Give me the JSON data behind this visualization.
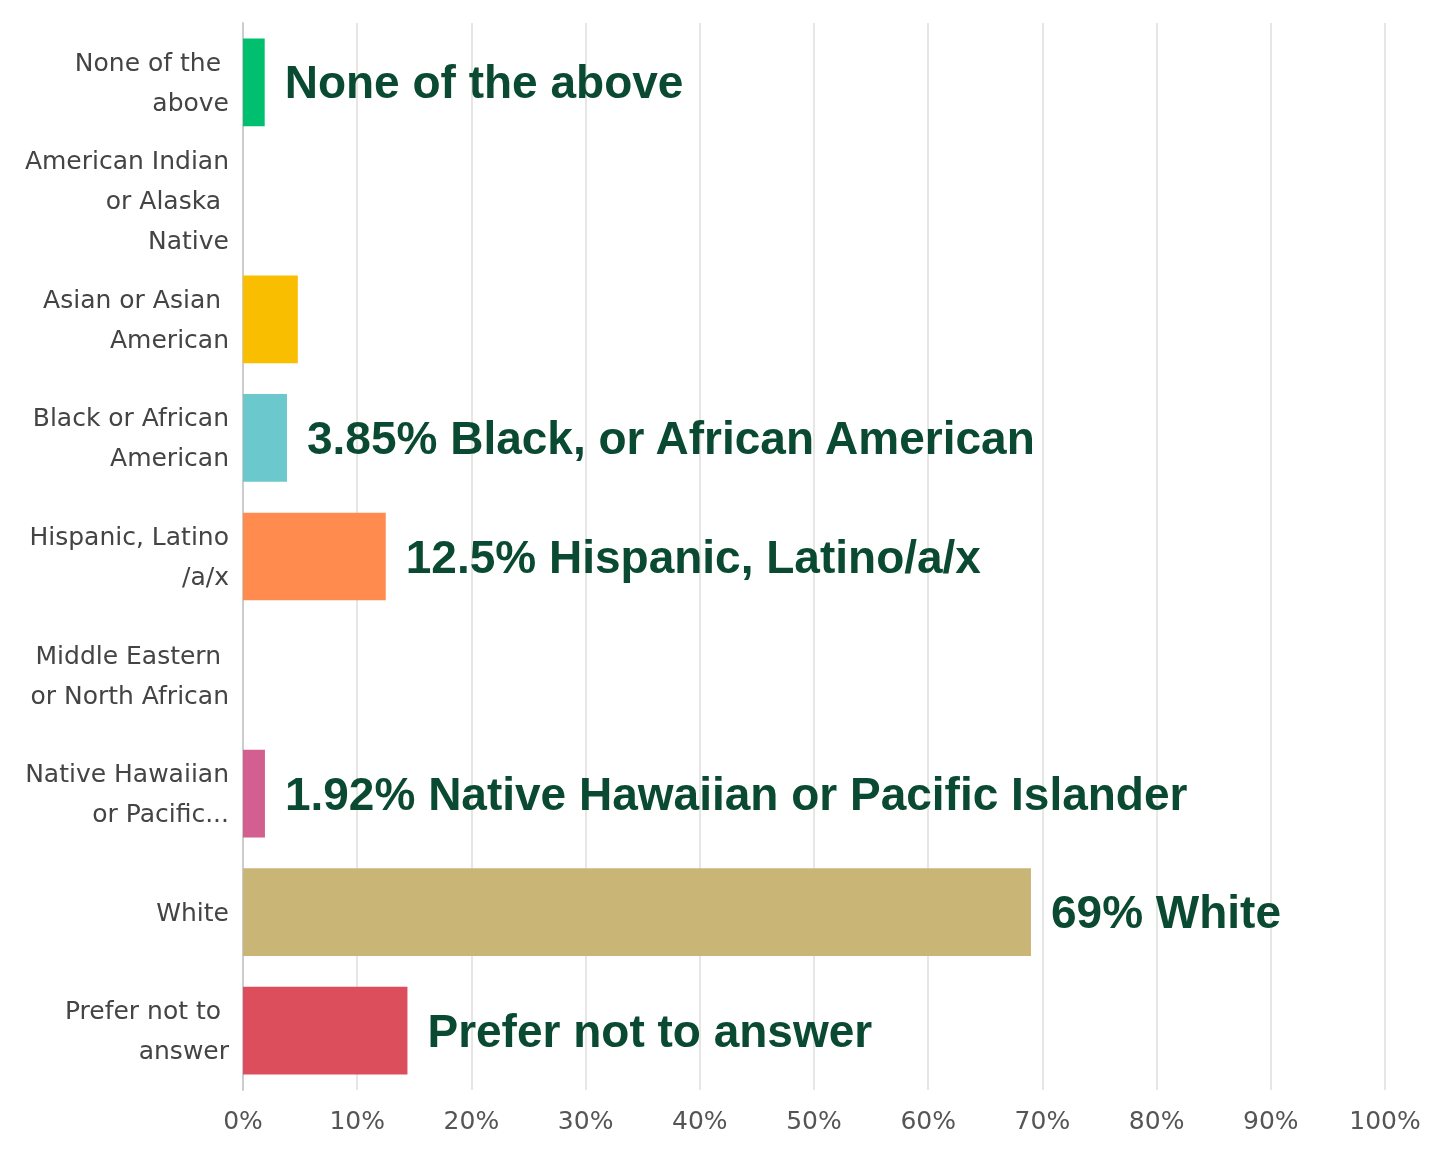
{
  "chart_data": {
    "type": "bar",
    "orientation": "horizontal",
    "categories": [
      "None of the above",
      "American Indian or Alaska Native",
      "Asian or Asian American",
      "Black or African American",
      "Hispanic, Latino/a/x",
      "Middle Eastern or North African",
      "Native Hawaiian or Pacific...",
      "White",
      "Prefer not to answer"
    ],
    "values": [
      1.9,
      0,
      4.8,
      3.85,
      12.5,
      0,
      1.92,
      69,
      14.4
    ],
    "colors": [
      "#00bf6f",
      null,
      "#f9be00",
      "#6bc8cd",
      "#ff8b4f",
      null,
      "#d25f90",
      "#c9b677",
      "#dc4e5b"
    ],
    "value_labels": [
      "None of the above",
      null,
      null,
      "3.85% Black, or African American",
      "12.5% Hispanic, Latino/a/x",
      null,
      "1.92% Native Hawaiian or Pacific Islander",
      "69% White",
      "Prefer not to answer"
    ],
    "xlim": [
      0,
      100
    ],
    "xticks": [
      {
        "value": 0,
        "label": "0%"
      },
      {
        "value": 10,
        "label": "10%"
      },
      {
        "value": 20,
        "label": "20%"
      },
      {
        "value": 30,
        "label": "30%"
      },
      {
        "value": 40,
        "label": "40%"
      },
      {
        "value": 50,
        "label": "50%"
      },
      {
        "value": 60,
        "label": "60%"
      },
      {
        "value": 70,
        "label": "70%"
      },
      {
        "value": 80,
        "label": "80%"
      },
      {
        "value": 90,
        "label": "90%"
      },
      {
        "value": 100,
        "label": "100%"
      }
    ],
    "grid": "x"
  }
}
